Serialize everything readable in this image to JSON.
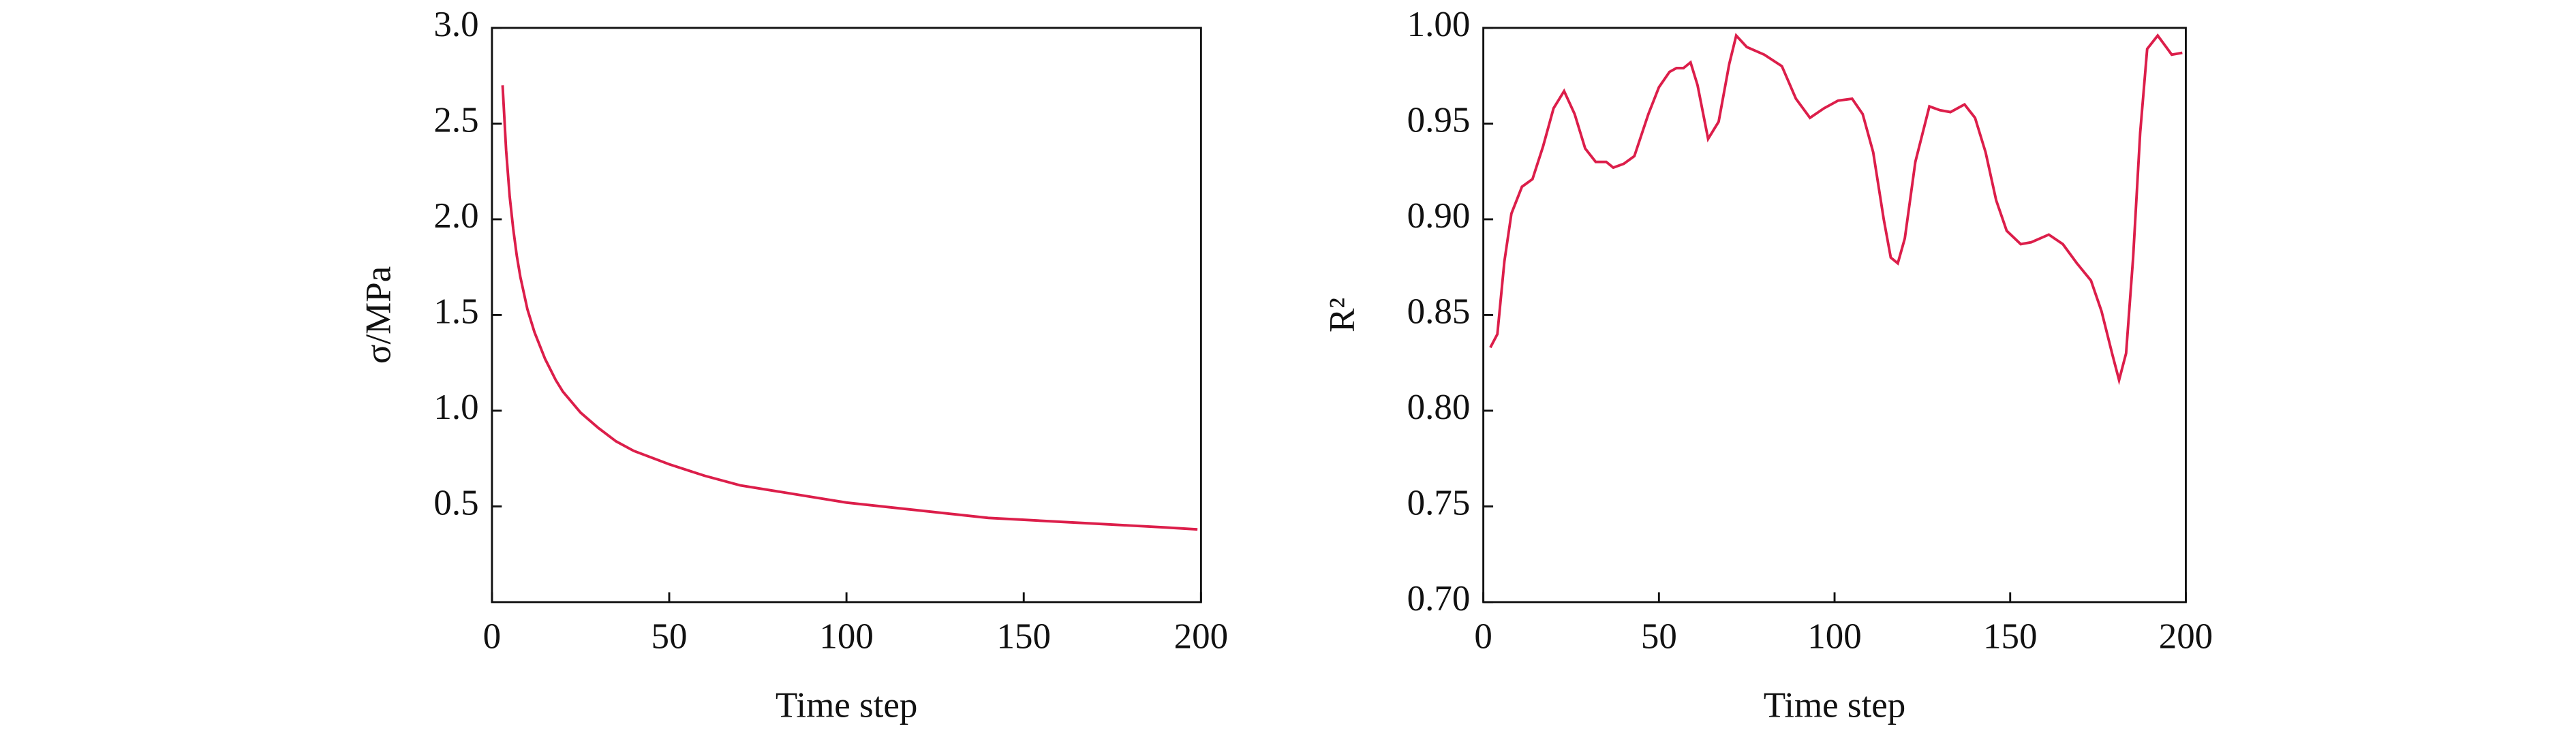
{
  "chart_data": [
    {
      "type": "line",
      "x_label": "Time step",
      "y_label": "σ/MPa",
      "xlim": [
        0,
        200
      ],
      "xticks": [
        0,
        50,
        100,
        150,
        200
      ],
      "ylim": [
        0,
        3
      ],
      "yticks": [
        0.5,
        {
          "value": 1,
          "label": "1.0"
        },
        1.5,
        {
          "value": 2,
          "label": "2.0"
        },
        2.5,
        {
          "value": 3,
          "label": "3.0"
        }
      ],
      "grid": false,
      "series": [
        {
          "color": "#dc1e4a",
          "x": [
            3,
            4,
            5,
            6,
            7,
            8,
            10,
            12,
            15,
            18,
            20,
            25,
            30,
            35,
            40,
            50,
            60,
            70,
            80,
            90,
            100,
            110,
            120,
            130,
            140,
            150,
            160,
            170,
            180,
            190,
            199
          ],
          "values": [
            2.7,
            2.36,
            2.12,
            1.95,
            1.81,
            1.7,
            1.53,
            1.41,
            1.27,
            1.16,
            1.1,
            0.99,
            0.91,
            0.84,
            0.79,
            0.72,
            0.66,
            0.61,
            0.58,
            0.55,
            0.52,
            0.5,
            0.48,
            0.46,
            0.44,
            0.43,
            0.42,
            0.41,
            0.4,
            0.39,
            0.38
          ]
        }
      ]
    },
    {
      "type": "line",
      "x_label": "Time step",
      "y_label": "R²",
      "xlim": [
        0,
        200
      ],
      "xticks": [
        0,
        50,
        100,
        150,
        200
      ],
      "ylim": [
        0.7,
        1.0
      ],
      "yticks": [
        {
          "value": 0.7,
          "label": "0.70"
        },
        0.75,
        {
          "value": 0.8,
          "label": "0.80"
        },
        0.85,
        {
          "value": 0.9,
          "label": "0.90"
        },
        0.95,
        {
          "value": 1.0,
          "label": "1.00"
        }
      ],
      "grid": false,
      "series": [
        {
          "color": "#dc1e4a",
          "x": [
            2,
            4,
            6,
            8,
            11,
            14,
            17,
            20,
            23,
            26,
            29,
            32,
            35,
            37,
            40,
            43,
            47,
            50,
            53,
            55,
            57,
            59,
            61,
            64,
            67,
            70,
            72,
            75,
            80,
            85,
            89,
            93,
            97,
            101,
            105,
            108,
            111,
            114,
            116,
            118,
            120,
            123,
            127,
            130,
            133,
            137,
            140,
            143,
            146,
            149,
            153,
            156,
            161,
            165,
            169,
            173,
            176,
            179,
            181,
            183,
            185,
            187,
            189,
            192,
            196,
            199
          ],
          "values": [
            0.833,
            0.84,
            0.878,
            0.903,
            0.917,
            0.921,
            0.938,
            0.958,
            0.967,
            0.955,
            0.937,
            0.93,
            0.93,
            0.927,
            0.929,
            0.933,
            0.955,
            0.969,
            0.977,
            0.979,
            0.979,
            0.982,
            0.97,
            0.942,
            0.951,
            0.981,
            0.996,
            0.99,
            0.986,
            0.98,
            0.963,
            0.953,
            0.958,
            0.962,
            0.963,
            0.955,
            0.935,
            0.9,
            0.88,
            0.877,
            0.89,
            0.93,
            0.959,
            0.957,
            0.956,
            0.96,
            0.953,
            0.935,
            0.91,
            0.894,
            0.887,
            0.888,
            0.892,
            0.887,
            0.877,
            0.868,
            0.852,
            0.83,
            0.816,
            0.83,
            0.88,
            0.945,
            0.989,
            0.996,
            0.986,
            0.987
          ]
        }
      ]
    }
  ]
}
